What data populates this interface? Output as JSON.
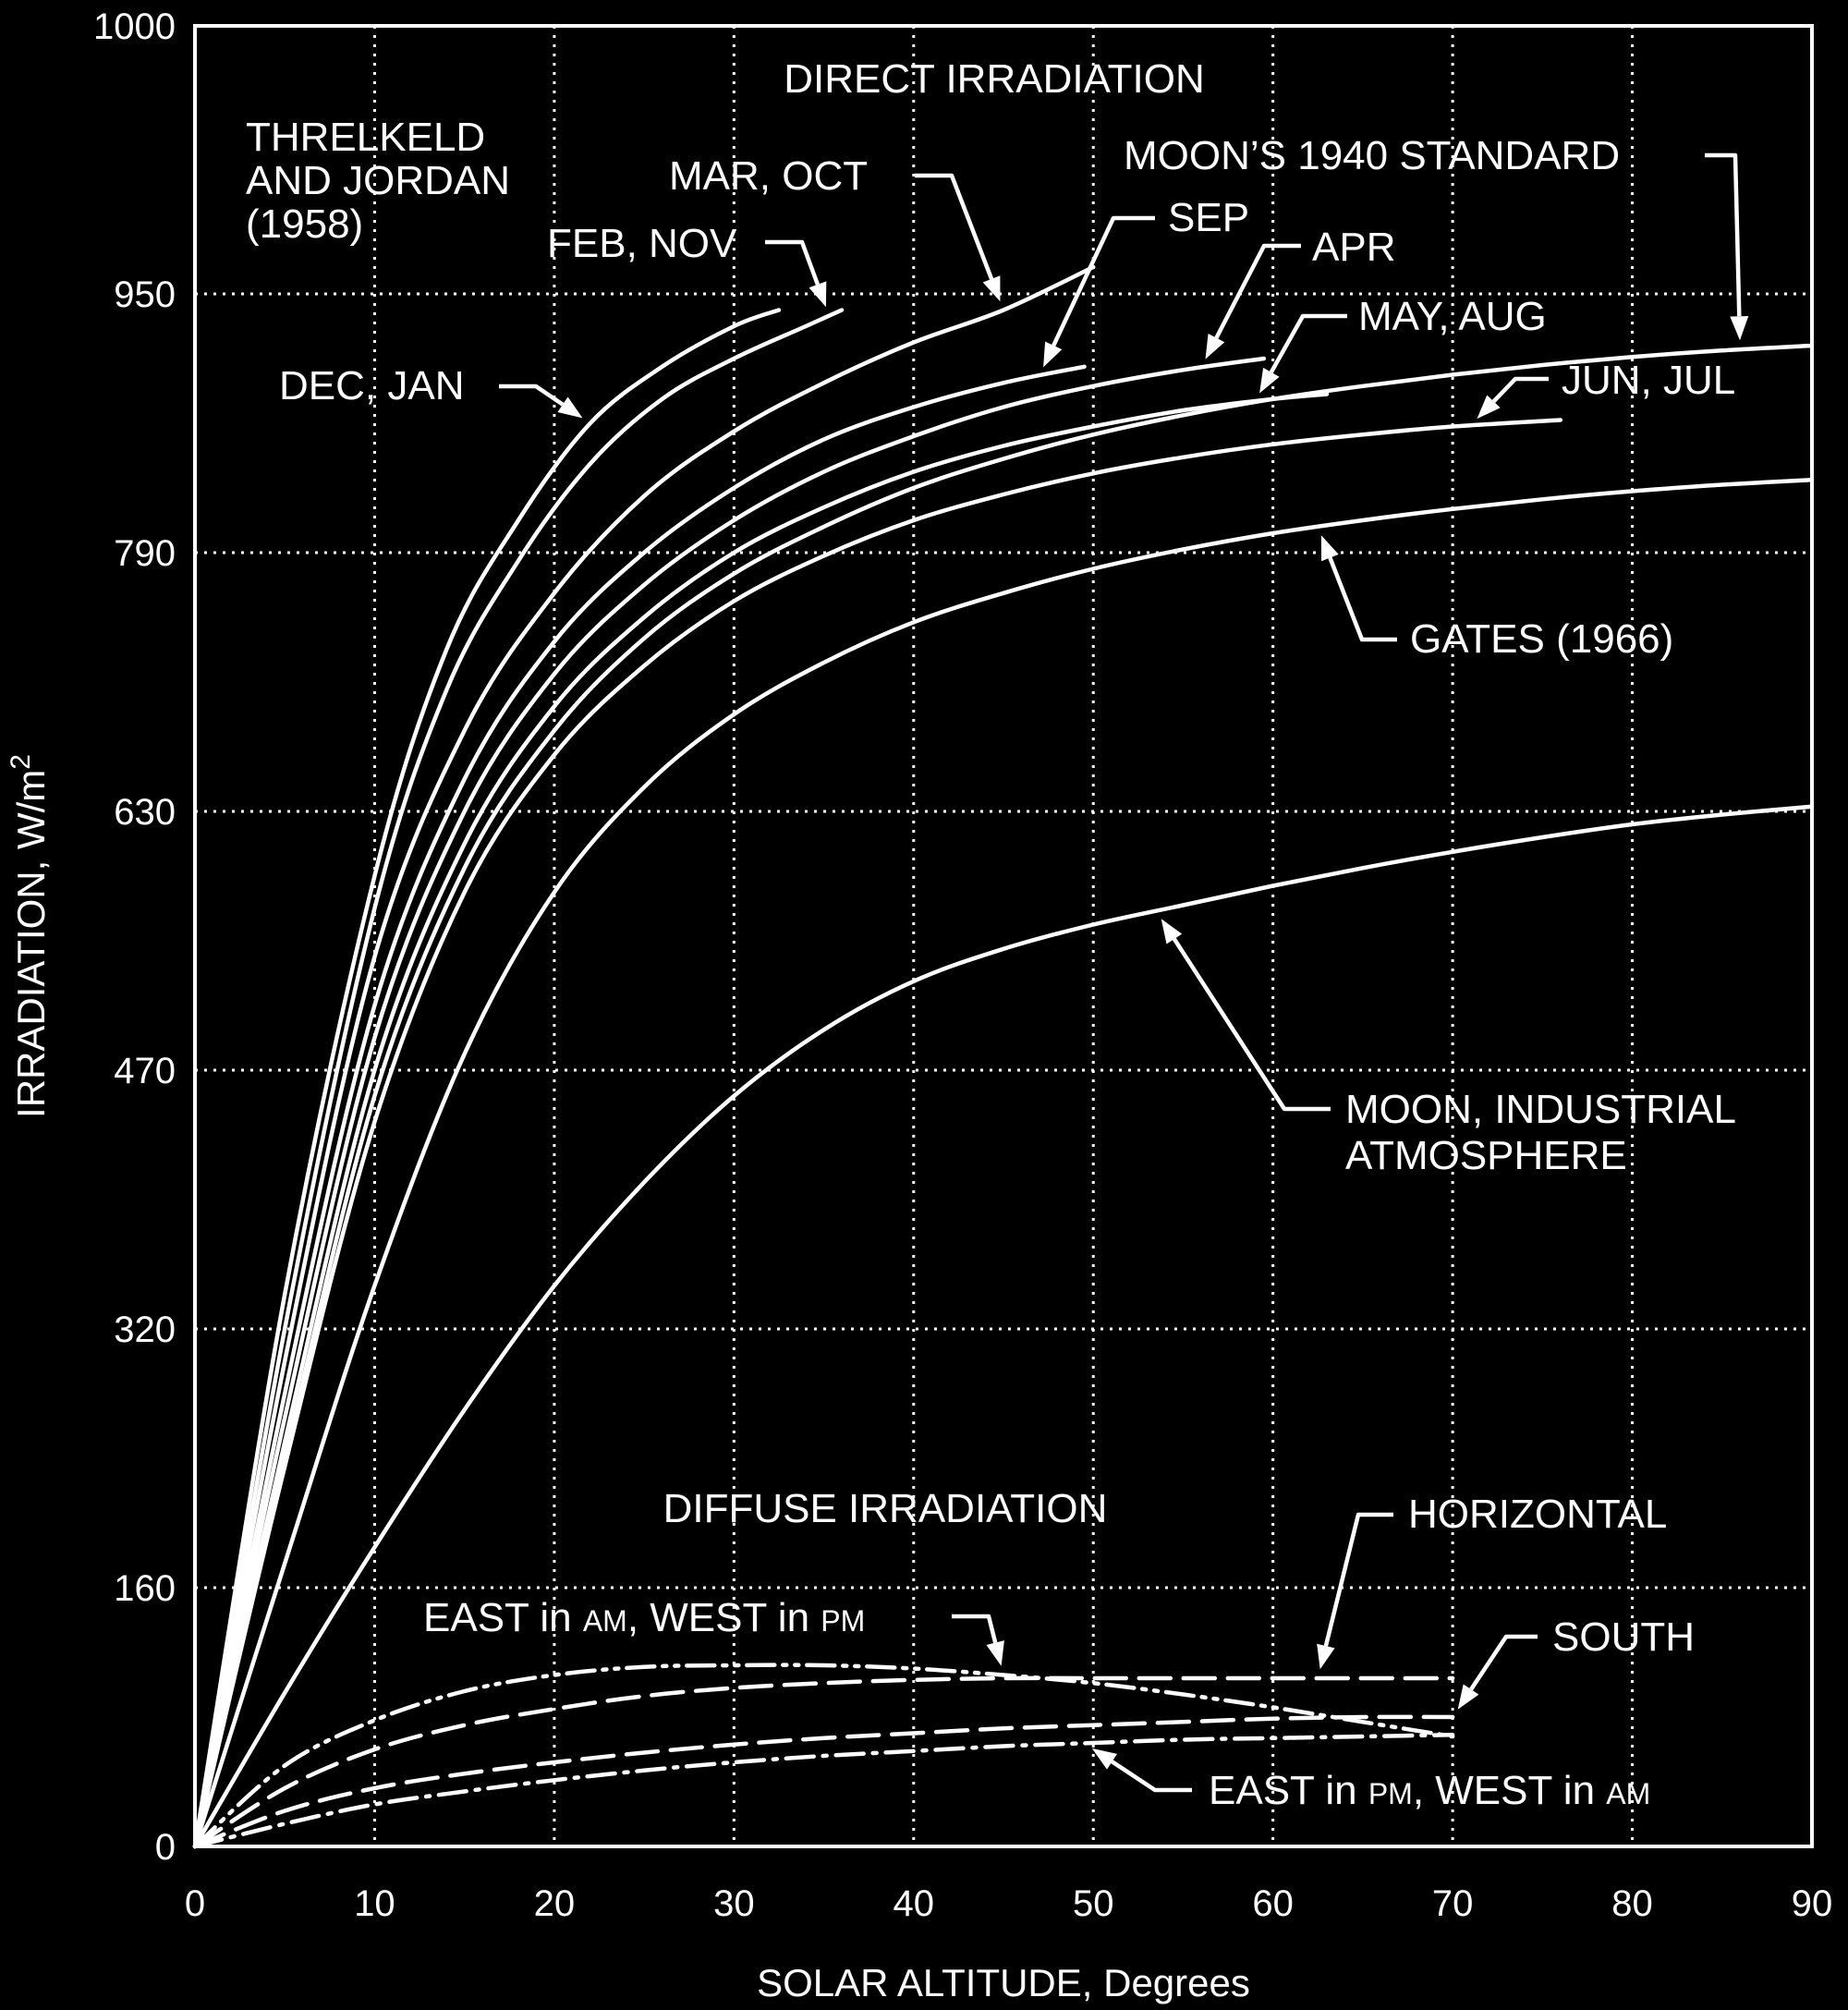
{
  "chart_data": {
    "type": "line",
    "title": "",
    "xlabel": "SOLAR ALTITUDE, Degrees",
    "ylabel": "IRRADIATION, W/m²",
    "xlim": [
      0,
      90
    ],
    "y_ticks": [
      0,
      160,
      320,
      470,
      630,
      790,
      950,
      1000
    ],
    "x_ticks": [
      0,
      10,
      20,
      30,
      40,
      50,
      60,
      70,
      80,
      90
    ],
    "grid": true,
    "section_labels": [
      "DIRECT IRRADIATION",
      "DIFFUSE IRRADIATION"
    ],
    "source_label": "THRELKELD\nAND JORDAN\n(1958)",
    "series": [
      {
        "name": "DEC, JAN",
        "style": "solid",
        "x": [
          0,
          5,
          10,
          14,
          18,
          22,
          26,
          30,
          32.5
        ],
        "y": [
          0,
          340,
          590,
          730,
          810,
          870,
          905,
          930,
          940
        ]
      },
      {
        "name": "FEB, NOV",
        "style": "solid",
        "x": [
          0,
          5,
          10,
          14,
          18,
          22,
          26,
          30,
          34,
          36
        ],
        "y": [
          0,
          320,
          570,
          705,
          785,
          845,
          885,
          910,
          930,
          940
        ]
      },
      {
        "name": "MAR, OCT",
        "style": "solid",
        "x": [
          0,
          5,
          10,
          15,
          20,
          25,
          30,
          35,
          40,
          45,
          50
        ],
        "y": [
          0,
          300,
          540,
          680,
          765,
          825,
          865,
          895,
          920,
          940,
          955
        ]
      },
      {
        "name": "SEP",
        "style": "solid",
        "x": [
          0,
          5,
          10,
          15,
          20,
          25,
          30,
          35,
          40,
          45,
          49.5
        ],
        "y": [
          0,
          280,
          510,
          650,
          735,
          790,
          830,
          860,
          880,
          895,
          905
        ]
      },
      {
        "name": "APR",
        "style": "solid",
        "x": [
          0,
          5,
          10,
          15,
          20,
          25,
          30,
          35,
          40,
          45,
          50,
          55,
          59.5
        ],
        "y": [
          0,
          265,
          490,
          630,
          715,
          770,
          810,
          840,
          862,
          880,
          893,
          903,
          910
        ]
      },
      {
        "name": "MAY, AUG",
        "style": "solid",
        "x": [
          0,
          5,
          10,
          15,
          20,
          25,
          30,
          35,
          40,
          45,
          50,
          55,
          60,
          63
        ],
        "y": [
          0,
          250,
          470,
          610,
          695,
          750,
          790,
          818,
          840,
          856,
          868,
          878,
          885,
          888
        ]
      },
      {
        "name": "MOON'S 1940 STANDARD",
        "style": "solid",
        "x": [
          0,
          5,
          10,
          15,
          20,
          25,
          30,
          35,
          40,
          45,
          50,
          55,
          60,
          65,
          70,
          75,
          80,
          85,
          90
        ],
        "y": [
          0,
          240,
          455,
          595,
          680,
          737,
          777,
          806,
          830,
          848,
          863,
          875,
          885,
          893,
          900,
          906,
          911,
          915,
          918
        ]
      },
      {
        "name": "JUN, JUL",
        "style": "solid",
        "x": [
          0,
          5,
          10,
          15,
          20,
          25,
          30,
          35,
          40,
          45,
          50,
          55,
          60,
          65,
          70,
          76
        ],
        "y": [
          0,
          235,
          440,
          580,
          665,
          720,
          760,
          788,
          810,
          826,
          839,
          849,
          857,
          863,
          868,
          872
        ]
      },
      {
        "name": "GATES (1966)",
        "style": "solid",
        "x": [
          0,
          5,
          10,
          15,
          20,
          25,
          30,
          35,
          40,
          45,
          50,
          55,
          60,
          65,
          70,
          75,
          80,
          85,
          90
        ],
        "y": [
          0,
          175,
          345,
          480,
          580,
          645,
          690,
          722,
          747,
          765,
          780,
          792,
          802,
          810,
          817,
          823,
          828,
          832,
          835
        ]
      },
      {
        "name": "MOON, INDUSTRIAL ATMOSPHERE",
        "style": "solid",
        "x": [
          0,
          5,
          10,
          15,
          20,
          25,
          30,
          35,
          40,
          45,
          50,
          55,
          60,
          65,
          70,
          75,
          80,
          85,
          90
        ],
        "y": [
          0,
          95,
          185,
          270,
          345,
          405,
          455,
          495,
          525,
          545,
          560,
          572,
          584,
          595,
          605,
          614,
          622,
          628,
          633
        ]
      },
      {
        "name": "HORIZONTAL",
        "style": "dashed",
        "x": [
          0,
          5,
          10,
          15,
          20,
          25,
          30,
          35,
          40,
          45,
          50,
          55,
          60,
          65,
          70
        ],
        "y": [
          0,
          36,
          60,
          75,
          85,
          93,
          98,
          101,
          103,
          104,
          104,
          104,
          104,
          104,
          104
        ]
      },
      {
        "name": "SOUTH",
        "style": "dashed",
        "x": [
          0,
          5,
          10,
          15,
          20,
          25,
          30,
          35,
          40,
          45,
          50,
          55,
          60,
          65,
          70
        ],
        "y": [
          0,
          22,
          36,
          45,
          52,
          58,
          63,
          67,
          70,
          73,
          75,
          77,
          79,
          80,
          80
        ]
      },
      {
        "name": "EAST in AM, WEST in PM",
        "style": "dashdotdot",
        "x": [
          0,
          5,
          10,
          15,
          20,
          25,
          30,
          35,
          40,
          45,
          50,
          55,
          60,
          65,
          70
        ],
        "y": [
          0,
          50,
          78,
          96,
          106,
          111,
          112,
          112,
          110,
          106,
          101,
          94,
          86,
          77,
          68
        ]
      },
      {
        "name": "EAST in PM, WEST in AM",
        "style": "dashdot",
        "x": [
          0,
          5,
          10,
          15,
          20,
          25,
          30,
          35,
          40,
          45,
          50,
          55,
          60,
          65,
          70
        ],
        "y": [
          0,
          14,
          26,
          34,
          41,
          47,
          52,
          56,
          59,
          62,
          64,
          66,
          67,
          68,
          69
        ]
      }
    ],
    "annotations": [
      {
        "text": "DEC, JAN",
        "series": "DEC, JAN"
      },
      {
        "text": "FEB, NOV",
        "series": "FEB, NOV"
      },
      {
        "text": "MAR, OCT",
        "series": "MAR, OCT"
      },
      {
        "text": "SEP",
        "series": "SEP"
      },
      {
        "text": "APR",
        "series": "APR"
      },
      {
        "text": "MAY, AUG",
        "series": "MAY, AUG"
      },
      {
        "text": "MOON’S 1940 STANDARD",
        "series": "MOON'S 1940 STANDARD"
      },
      {
        "text": "JUN, JUL",
        "series": "JUN, JUL"
      },
      {
        "text": "GATES (1966)",
        "series": "GATES (1966)"
      },
      {
        "text": "MOON, INDUSTRIAL\nATMOSPHERE",
        "series": "MOON, INDUSTRIAL ATMOSPHERE"
      },
      {
        "text": "HORIZONTAL",
        "series": "HORIZONTAL"
      },
      {
        "text": "SOUTH",
        "series": "SOUTH"
      },
      {
        "text": "EAST in AM, WEST in PM",
        "series": "EAST in AM, WEST in PM"
      },
      {
        "text": "EAST in PM, WEST in AM",
        "series": "EAST in PM, WEST in AM"
      }
    ]
  },
  "colors": {
    "background": "#000000",
    "foreground": "#ffffff"
  }
}
